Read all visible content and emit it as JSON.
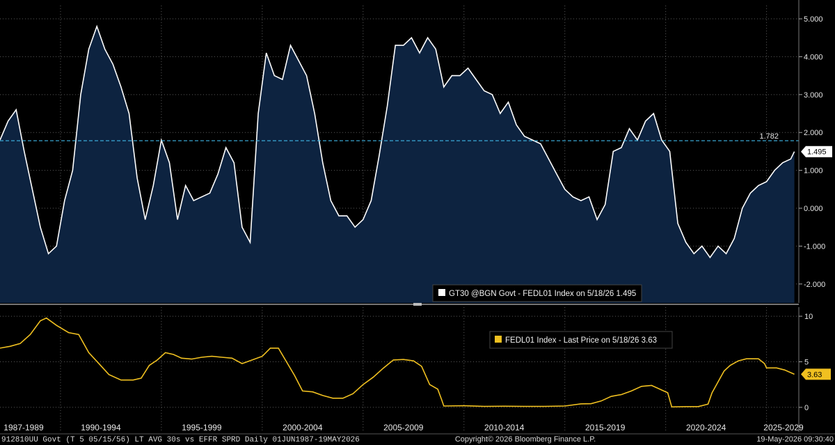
{
  "chart_data": [
    {
      "type": "area",
      "series": [
        {
          "name": "GT30 @BGN Govt - FEDL01 Index on 5/18/26 1.495",
          "x": [
            1987.0,
            1987.4,
            1987.8,
            1988.2,
            1988.6,
            1989.0,
            1989.4,
            1989.8,
            1990.2,
            1990.6,
            1991.0,
            1991.4,
            1991.8,
            1992.2,
            1992.6,
            1993.0,
            1993.4,
            1993.8,
            1994.2,
            1994.6,
            1995.0,
            1995.4,
            1995.8,
            1996.2,
            1996.6,
            1997.0,
            1997.4,
            1997.8,
            1998.2,
            1998.6,
            1999.0,
            1999.4,
            1999.8,
            2000.2,
            2000.6,
            2001.0,
            2001.4,
            2001.8,
            2002.2,
            2002.6,
            2003.0,
            2003.4,
            2003.8,
            2004.2,
            2004.6,
            2005.0,
            2005.4,
            2005.8,
            2006.2,
            2006.6,
            2007.0,
            2007.4,
            2007.8,
            2008.2,
            2008.6,
            2009.0,
            2009.4,
            2009.8,
            2010.2,
            2010.6,
            2011.0,
            2011.4,
            2011.8,
            2012.2,
            2012.6,
            2013.0,
            2013.4,
            2013.8,
            2014.2,
            2014.6,
            2015.0,
            2015.4,
            2015.8,
            2016.2,
            2016.6,
            2017.0,
            2017.4,
            2017.8,
            2018.2,
            2018.6,
            2019.0,
            2019.4,
            2019.8,
            2020.2,
            2020.6,
            2021.0,
            2021.4,
            2021.8,
            2022.2,
            2022.6,
            2023.0,
            2023.4,
            2023.8,
            2024.2,
            2024.6,
            2025.0,
            2025.4,
            2025.8,
            2026.2,
            2026.38
          ],
          "values": [
            1.8,
            2.3,
            2.6,
            1.5,
            0.5,
            -0.5,
            -1.2,
            -1.0,
            0.2,
            1.0,
            3.0,
            4.2,
            4.8,
            4.2,
            3.8,
            3.2,
            2.5,
            0.8,
            -0.3,
            0.6,
            1.8,
            1.2,
            -0.3,
            0.6,
            0.2,
            0.3,
            0.4,
            0.9,
            1.6,
            1.2,
            -0.5,
            -0.9,
            2.5,
            4.1,
            3.5,
            3.4,
            4.3,
            3.9,
            3.5,
            2.5,
            1.2,
            0.2,
            -0.2,
            -0.2,
            -0.5,
            -0.3,
            0.2,
            1.4,
            2.7,
            4.3,
            4.3,
            4.5,
            4.1,
            4.5,
            4.2,
            3.2,
            3.5,
            3.5,
            3.7,
            3.4,
            3.1,
            3.0,
            2.5,
            2.8,
            2.2,
            1.9,
            1.8,
            1.7,
            1.3,
            0.9,
            0.5,
            0.3,
            0.2,
            0.3,
            -0.3,
            0.1,
            1.5,
            1.6,
            2.1,
            1.8,
            2.3,
            2.5,
            1.8,
            1.5,
            -0.4,
            -0.9,
            -1.2,
            -1.0,
            -1.3,
            -1.0,
            -1.2,
            -0.8,
            0.0,
            0.4,
            0.6,
            0.7,
            1.0,
            1.2,
            1.3,
            1.495
          ]
        }
      ],
      "ylim": [
        -2.5,
        5.35
      ],
      "yticks": [
        "5.000",
        "4.000",
        "3.000",
        "2.000",
        "1.000",
        "0.000",
        "-1.000",
        "-2.000"
      ],
      "ytick_values": [
        5,
        4,
        3,
        2,
        1,
        0,
        -1,
        -2
      ],
      "reference_line": {
        "value": 1.782,
        "label": "1.782",
        "color": "#3fb8e8"
      },
      "last_value": {
        "value": 1.495,
        "label": "1.495"
      },
      "legend": "GT30 @BGN Govt - FEDL01 Index on 5/18/26 1.495",
      "colors": {
        "line": "#ffffff",
        "fill": "#0d2340"
      }
    },
    {
      "type": "line",
      "series": [
        {
          "name": "FEDL01 Index - Last Price on 5/18/26 3.63",
          "x": [
            1987.0,
            1987.5,
            1988.0,
            1988.5,
            1989.0,
            1989.3,
            1989.8,
            1990.4,
            1990.9,
            1991.4,
            1991.9,
            1992.4,
            1993.0,
            1993.6,
            1994.0,
            1994.4,
            1994.8,
            1995.2,
            1995.6,
            1996.0,
            1996.5,
            1997.0,
            1997.5,
            1998.0,
            1998.5,
            1999.0,
            1999.5,
            2000.0,
            2000.4,
            2000.8,
            2001.2,
            2001.6,
            2002.0,
            2002.5,
            2003.0,
            2003.5,
            2004.0,
            2004.5,
            2005.0,
            2005.5,
            2006.0,
            2006.5,
            2007.0,
            2007.5,
            2007.9,
            2008.3,
            2008.7,
            2008.9,
            2009.0,
            2010.0,
            2011.0,
            2012.0,
            2013.0,
            2014.0,
            2015.0,
            2015.8,
            2016.3,
            2016.8,
            2017.3,
            2017.8,
            2018.3,
            2018.8,
            2019.3,
            2019.6,
            2019.9,
            2020.1,
            2020.3,
            2021.0,
            2021.6,
            2022.1,
            2022.3,
            2022.5,
            2022.7,
            2022.9,
            2023.2,
            2023.6,
            2024.0,
            2024.6,
            2024.9,
            2025.0,
            2025.5,
            2025.9,
            2026.38
          ],
          "values": [
            6.5,
            6.7,
            7.0,
            8.0,
            9.5,
            9.8,
            9.0,
            8.2,
            8.0,
            6.0,
            4.8,
            3.6,
            3.0,
            3.0,
            3.2,
            4.6,
            5.2,
            6.0,
            5.8,
            5.4,
            5.3,
            5.5,
            5.6,
            5.5,
            5.4,
            4.8,
            5.2,
            5.6,
            6.5,
            6.5,
            5.0,
            3.5,
            1.8,
            1.7,
            1.3,
            1.0,
            1.0,
            1.5,
            2.5,
            3.3,
            4.3,
            5.2,
            5.25,
            5.1,
            4.5,
            2.5,
            2.0,
            0.8,
            0.15,
            0.18,
            0.1,
            0.12,
            0.1,
            0.1,
            0.15,
            0.38,
            0.4,
            0.7,
            1.2,
            1.4,
            1.8,
            2.3,
            2.4,
            2.1,
            1.8,
            1.6,
            0.05,
            0.08,
            0.08,
            0.35,
            1.6,
            2.4,
            3.2,
            4.0,
            4.6,
            5.1,
            5.33,
            5.33,
            4.8,
            4.33,
            4.33,
            4.1,
            3.63
          ]
        }
      ],
      "ylim": [
        -1,
        11
      ],
      "yticks": [
        "10",
        "5",
        "0"
      ],
      "ytick_values": [
        10,
        5,
        0
      ],
      "last_value": {
        "value": 3.63,
        "label": "3.63"
      },
      "legend": "FEDL01 Index - Last Price on 5/18/26 3.63",
      "colors": {
        "line": "#f0c020",
        "legend_box": "#f0c020"
      }
    }
  ],
  "x_axis": {
    "range": [
      1987.0,
      2026.6
    ],
    "labels": [
      "1987-1989",
      "1990-1994",
      "1995-1999",
      "2000-2004",
      "2005-2009",
      "2010-2014",
      "2015-2019",
      "2020-2024",
      "2025-2029"
    ],
    "label_centers": [
      1988.0,
      1992.0,
      1997.0,
      2002.0,
      2007.0,
      2012.0,
      2017.0,
      2022.0,
      2027.0
    ],
    "separators": [
      1990.0,
      1995.0,
      2000.0,
      2005.0,
      2010.0,
      2015.0,
      2020.0,
      2025.0
    ]
  },
  "footer": {
    "left": "912810UU Govt (T 5 05/15/56) LT AVG 30s vs EFFR SPRD Daily 01JUN1987-19MAY2026",
    "center": "Copyright© 2026 Bloomberg Finance L.P.",
    "right": "19-May-2026 09:30:40"
  }
}
